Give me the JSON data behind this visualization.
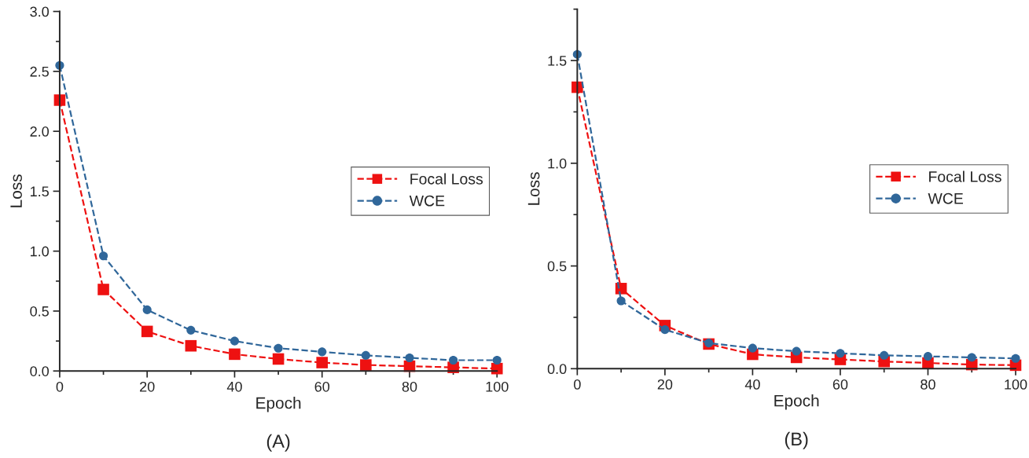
{
  "chart_data": [
    {
      "type": "line",
      "xlabel": "Epoch",
      "ylabel": "Loss",
      "x": [
        0,
        10,
        20,
        30,
        40,
        50,
        60,
        70,
        80,
        90,
        100
      ],
      "xlim": [
        0,
        100
      ],
      "xticks": [
        0,
        20,
        40,
        60,
        80,
        100
      ],
      "ylim": [
        0,
        3.0
      ],
      "yticks": [
        {
          "value": 0,
          "label": "0.0"
        },
        0.5,
        {
          "value": 1,
          "label": "1.0"
        },
        1.5,
        {
          "value": 2,
          "label": "2.0"
        },
        2.5,
        {
          "value": 3,
          "label": "3.0"
        }
      ],
      "legend": "right",
      "line_style": "dashed",
      "grid": false,
      "annotations": [
        "(A)"
      ],
      "series": [
        {
          "name": "Focal Loss",
          "color": "#ee1111",
          "marker": "square",
          "values": [
            2.26,
            0.68,
            0.33,
            0.21,
            0.14,
            0.1,
            0.07,
            0.05,
            0.04,
            0.03,
            0.02
          ]
        },
        {
          "name": "WCE",
          "color": "#30679a",
          "marker": "circle",
          "values": [
            2.55,
            0.96,
            0.51,
            0.34,
            0.25,
            0.19,
            0.16,
            0.13,
            0.11,
            0.09,
            0.09
          ]
        }
      ]
    },
    {
      "type": "line",
      "xlabel": "Epoch",
      "ylabel": "Loss",
      "x": [
        0,
        10,
        20,
        30,
        40,
        50,
        60,
        70,
        80,
        90,
        100
      ],
      "xlim": [
        0,
        100
      ],
      "xticks": [
        0,
        20,
        40,
        60,
        80,
        100
      ],
      "ylim": [
        0,
        1.75
      ],
      "yticks": [
        {
          "value": 0,
          "label": "0.0"
        },
        0.5,
        {
          "value": 1,
          "label": "1.0"
        },
        1.5
      ],
      "legend": "right",
      "line_style": "dashed",
      "grid": false,
      "annotations": [
        "(B)"
      ],
      "series": [
        {
          "name": "Focal Loss",
          "color": "#ee1111",
          "marker": "square",
          "values": [
            1.37,
            0.39,
            0.21,
            0.12,
            0.07,
            0.055,
            0.045,
            0.035,
            0.028,
            0.02,
            0.017
          ]
        },
        {
          "name": "WCE",
          "color": "#30679a",
          "marker": "circle",
          "values": [
            1.53,
            0.33,
            0.19,
            0.125,
            0.1,
            0.085,
            0.075,
            0.065,
            0.06,
            0.055,
            0.05
          ]
        }
      ]
    }
  ]
}
